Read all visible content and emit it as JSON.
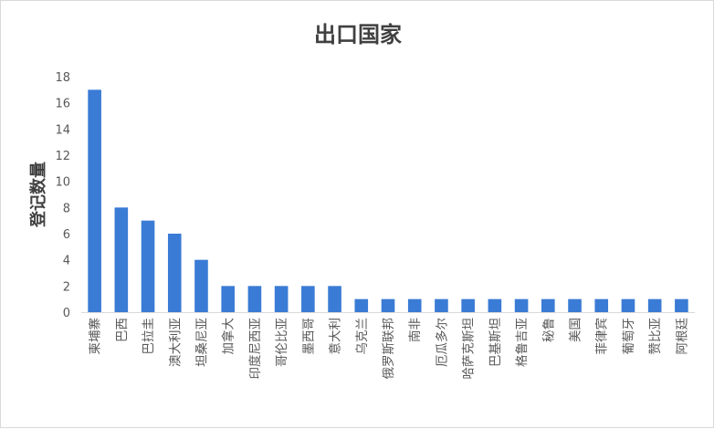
{
  "chart_data": {
    "type": "bar",
    "title": "出口国家",
    "ylabel": "登记数量",
    "xlabel": "",
    "ylim": [
      0,
      18
    ],
    "yticks": [
      0,
      2,
      4,
      6,
      8,
      10,
      12,
      14,
      16,
      18
    ],
    "grid": false,
    "legend": "none",
    "bar_color": "#3a7bd5",
    "categories": [
      "柬埔寨",
      "巴西",
      "巴拉圭",
      "澳大利亚",
      "坦桑尼亚",
      "加拿大",
      "印度尼西亚",
      "哥伦比亚",
      "墨西哥",
      "意大利",
      "乌克兰",
      "俄罗斯联邦",
      "南非",
      "厄瓜多尔",
      "哈萨克斯坦",
      "巴基斯坦",
      "格鲁吉亚",
      "秘鲁",
      "美国",
      "菲律宾",
      "葡萄牙",
      "赞比亚",
      "阿根廷"
    ],
    "values": [
      17,
      8,
      7,
      6,
      4,
      2,
      2,
      2,
      2,
      2,
      1,
      1,
      1,
      1,
      1,
      1,
      1,
      1,
      1,
      1,
      1,
      1,
      1
    ]
  }
}
